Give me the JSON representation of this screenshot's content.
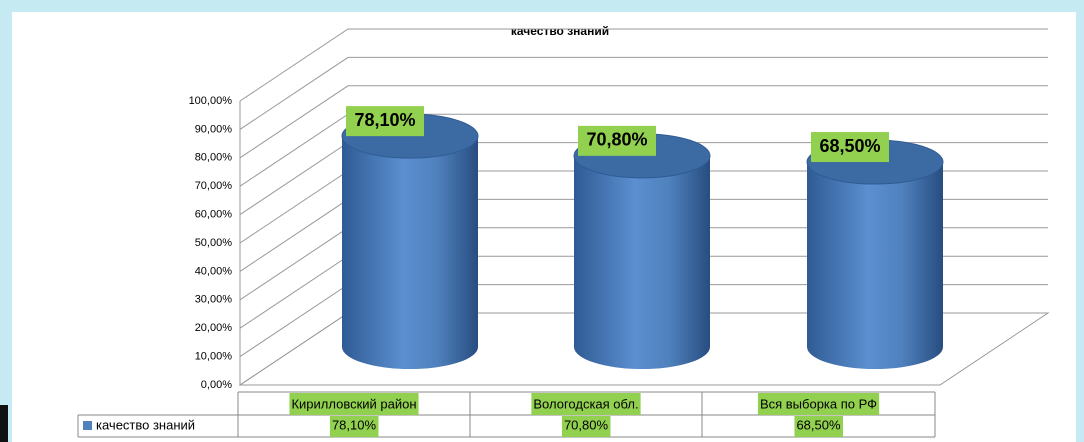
{
  "chart_data": {
    "type": "bar",
    "title": "качество знаний",
    "categories": [
      "Кирилловский район",
      "Вологодская обл.",
      "Вся выборка по РФ"
    ],
    "series": [
      {
        "name": "качество знаний",
        "color": "#4f81bd",
        "values": [
          78.1,
          70.8,
          68.5
        ],
        "value_labels": [
          "78,10%",
          "70,80%",
          "68,50%"
        ]
      }
    ],
    "ylim": [
      0,
      100
    ],
    "yticks": [
      {
        "value": 0,
        "label": "0,00%"
      },
      {
        "value": 10,
        "label": "10,00%"
      },
      {
        "value": 20,
        "label": "20,00%"
      },
      {
        "value": 30,
        "label": "30,00%"
      },
      {
        "value": 40,
        "label": "40,00%"
      },
      {
        "value": 50,
        "label": "50,00%"
      },
      {
        "value": 60,
        "label": "60,00%"
      },
      {
        "value": 70,
        "label": "70,00%"
      },
      {
        "value": 80,
        "label": "80,00%"
      },
      {
        "value": 90,
        "label": "90,00%"
      },
      {
        "value": 100,
        "label": "100,00%"
      }
    ],
    "grid": true
  }
}
